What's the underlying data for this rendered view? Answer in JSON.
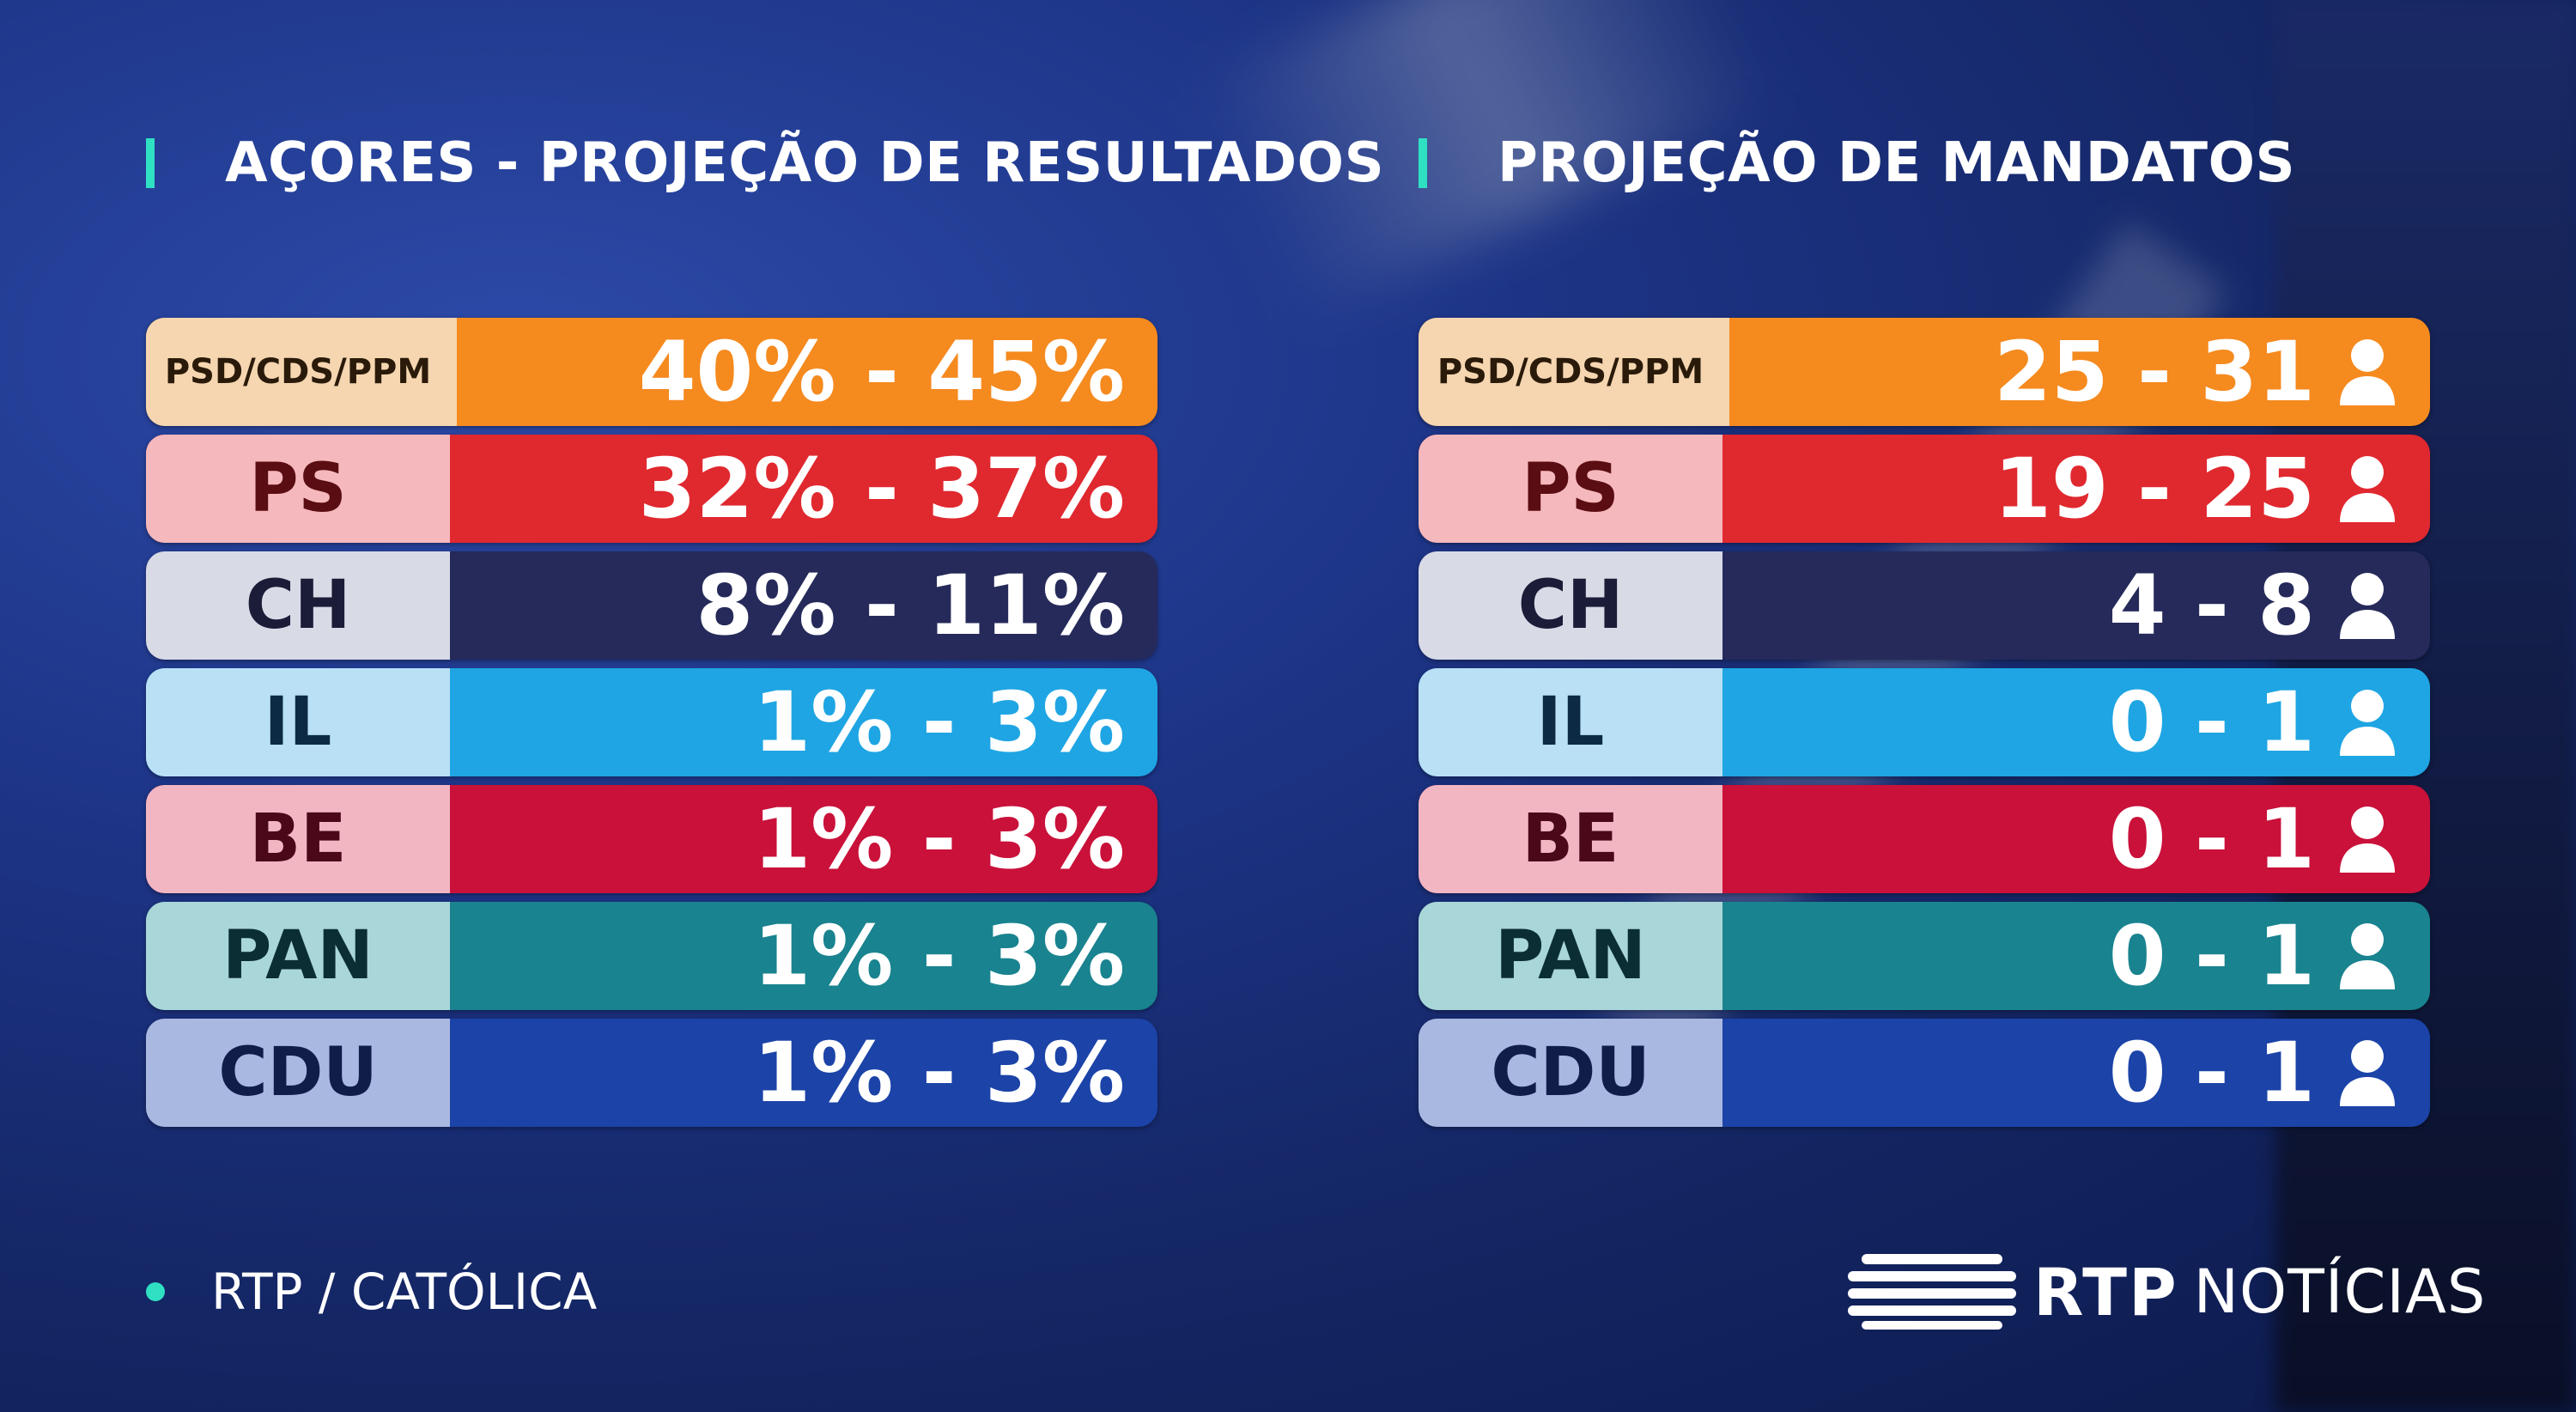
{
  "headings": {
    "results": "AÇORES - PROJEÇÃO DE RESULTADOS",
    "seats": "PROJEÇÃO DE MANDATOS"
  },
  "results": [
    {
      "party": "PSD/CDS/PPM",
      "value": "40% - 45%",
      "name_bg": "#f5d6b0",
      "bar": "#f58a1f",
      "text": "#2a1a0a"
    },
    {
      "party": "PS",
      "value": "32% - 37%",
      "name_bg": "#f5b8bd",
      "bar": "#e0282f",
      "text": "#5a0d12"
    },
    {
      "party": "CH",
      "value": "8% - 11%",
      "name_bg": "#d8dae6",
      "bar": "#262a5a",
      "text": "#1a1c38"
    },
    {
      "party": "IL",
      "value": "1% - 3%",
      "name_bg": "#b9e0f5",
      "bar": "#1fa5e3",
      "text": "#0d2a45"
    },
    {
      "party": "BE",
      "value": "1% - 3%",
      "name_bg": "#f2b6c2",
      "bar": "#c9113a",
      "text": "#4a0818"
    },
    {
      "party": "PAN",
      "value": "1% - 3%",
      "name_bg": "#a9d6d8",
      "bar": "#19838f",
      "text": "#0b2e35"
    },
    {
      "party": "CDU",
      "value": "1% - 3%",
      "name_bg": "#a9b8e0",
      "bar": "#1b43a8",
      "text": "#0f1d48"
    }
  ],
  "seats": [
    {
      "party": "PSD/CDS/PPM",
      "value": "25 - 31",
      "name_bg": "#f5d6b0",
      "bar": "#f58a1f",
      "text": "#2a1a0a"
    },
    {
      "party": "PS",
      "value": "19 - 25",
      "name_bg": "#f5b8bd",
      "bar": "#e0282f",
      "text": "#5a0d12"
    },
    {
      "party": "CH",
      "value": "4 - 8",
      "name_bg": "#d8dae6",
      "bar": "#262a5a",
      "text": "#1a1c38"
    },
    {
      "party": "IL",
      "value": "0 - 1",
      "name_bg": "#b9e0f5",
      "bar": "#1fa5e3",
      "text": "#0d2a45"
    },
    {
      "party": "BE",
      "value": "0 - 1",
      "name_bg": "#f2b6c2",
      "bar": "#c9113a",
      "text": "#4a0818"
    },
    {
      "party": "PAN",
      "value": "0 - 1",
      "name_bg": "#a9d6d8",
      "bar": "#19838f",
      "text": "#0b2e35"
    },
    {
      "party": "CDU",
      "value": "0 - 1",
      "name_bg": "#a9b8e0",
      "bar": "#1b43a8",
      "text": "#0f1d48"
    }
  ],
  "seat_icon": "person-icon",
  "accent_color": "#2fe0c3",
  "source": "RTP / CATÓLICA",
  "logo": {
    "brand": "RTP",
    "product": "NOTÍCIAS"
  }
}
